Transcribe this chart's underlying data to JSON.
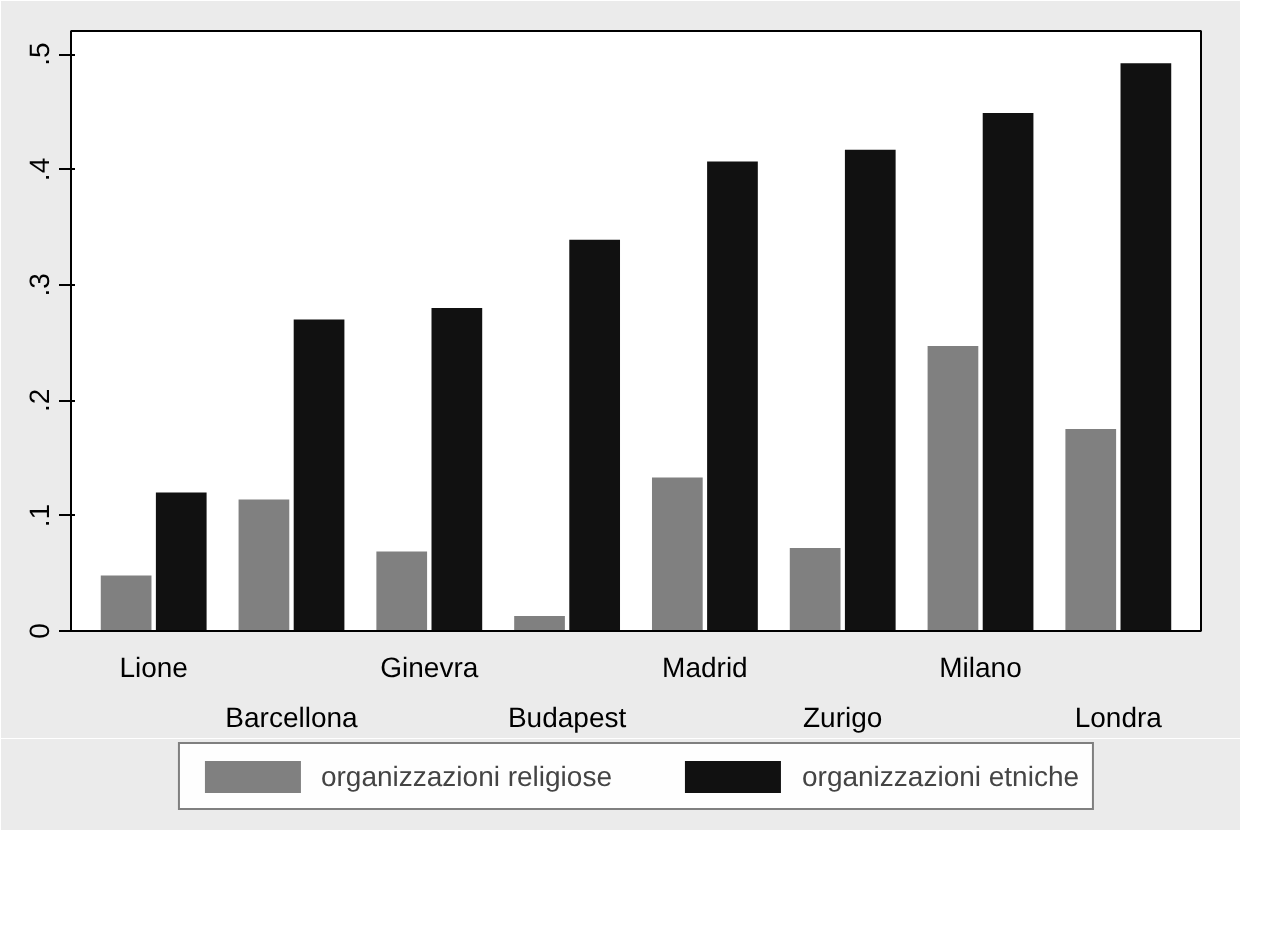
{
  "chart_data": {
    "type": "bar",
    "categories": [
      "Lione",
      "Barcellona",
      "Ginevra",
      "Budapest",
      "Madrid",
      "Zurigo",
      "Milano",
      "Londra"
    ],
    "series": [
      {
        "name": "organizzazioni religiose",
        "color": "#808080",
        "values": [
          0.048,
          0.114,
          0.069,
          0.013,
          0.133,
          0.072,
          0.247,
          0.175
        ]
      },
      {
        "name": "organizzazioni etniche",
        "color": "#111111",
        "values": [
          0.12,
          0.27,
          0.28,
          0.339,
          0.407,
          0.417,
          0.449,
          0.492
        ]
      }
    ],
    "ylim": [
      0,
      0.52
    ],
    "yticks": [
      0,
      {
        "value": 0.1,
        "label": ".1"
      },
      {
        "value": 0.2,
        "label": ".2"
      },
      {
        "value": 0.3,
        "label": ".3"
      },
      {
        "value": 0.4,
        "label": ".4"
      },
      {
        "value": 0.5,
        "label": ".5"
      }
    ],
    "legend": "bottom"
  }
}
